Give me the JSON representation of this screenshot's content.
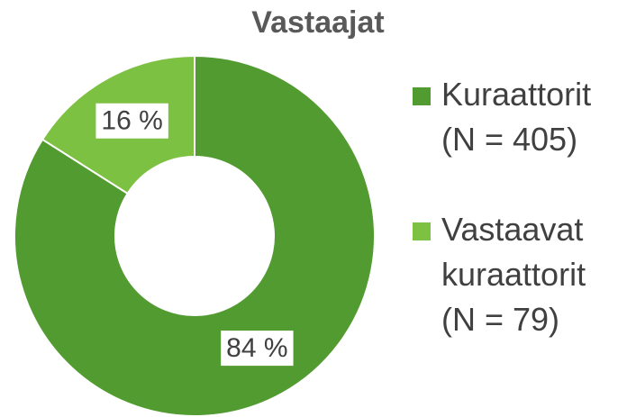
{
  "chart_data": {
    "type": "pie",
    "title": "Vastaajat",
    "categories": [
      "Kuraattorit (N = 405)",
      "Vastaavat kuraattorit (N = 79)"
    ],
    "values": [
      84,
      16
    ],
    "value_labels": [
      "84 %",
      "16 %"
    ],
    "colors": [
      "#519b30",
      "#7dc142"
    ],
    "legend": "right"
  }
}
